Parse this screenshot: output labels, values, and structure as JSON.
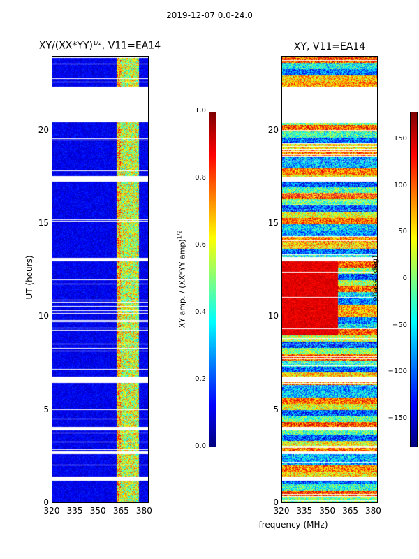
{
  "figure": {
    "suptitle": "2019-12-07 0.0-24.0",
    "xlabel": "frequency (MHz)",
    "ylabel": "UT (hours)"
  },
  "chart_data": [
    {
      "type": "heatmap",
      "title_main": "XY/(XX*YY)",
      "title_exp": "1/2",
      "title_tail": ", V11=EA14",
      "xlabel": "frequency (MHz)",
      "ylabel": "UT (hours)",
      "xlim": [
        320,
        383
      ],
      "ylim": [
        0,
        24
      ],
      "xticks": [
        320,
        335,
        350,
        365,
        380
      ],
      "yticks": [
        0,
        5,
        10,
        15,
        20
      ],
      "colorbar": {
        "label_main": "XY amp. / (XX*YY amp)",
        "label_exp": "1/2",
        "range": [
          0.0,
          1.0
        ],
        "ticks": [
          "0.0",
          "0.2",
          "0.4",
          "0.6",
          "0.8",
          "1.0"
        ],
        "tick_values": [
          0.0,
          0.2,
          0.4,
          0.6,
          0.8,
          1.0
        ],
        "colormap": "jet"
      },
      "data_gaps_hours": [
        [
          20.5,
          22.4
        ],
        [
          17.3,
          17.55
        ],
        [
          1.2,
          1.4
        ],
        [
          2.6,
          2.75
        ],
        [
          3.9,
          4.1
        ],
        [
          6.5,
          6.8
        ],
        [
          13.0,
          13.2
        ]
      ]
    },
    {
      "type": "heatmap",
      "title_main": "XY, V11=EA14",
      "xlabel": "frequency (MHz)",
      "ylabel": "",
      "xlim": [
        320,
        383
      ],
      "ylim": [
        0,
        24
      ],
      "xticks": [
        320,
        335,
        350,
        365,
        380
      ],
      "yticks": [
        0,
        5,
        10,
        15,
        20
      ],
      "colorbar": {
        "label_main": "phase (deg)",
        "range": [
          -180,
          180
        ],
        "ticks": [
          "150",
          "100",
          "50",
          "0",
          "−50",
          "−100",
          "−150"
        ],
        "tick_values": [
          150,
          100,
          50,
          0,
          -50,
          -100,
          -150
        ],
        "colormap": "jet"
      },
      "data_gaps_hours": [
        [
          20.5,
          22.4
        ],
        [
          17.3,
          17.55
        ],
        [
          1.2,
          1.4
        ],
        [
          2.6,
          2.75
        ],
        [
          3.9,
          4.1
        ],
        [
          6.5,
          6.8
        ],
        [
          13.0,
          13.2
        ]
      ]
    }
  ]
}
